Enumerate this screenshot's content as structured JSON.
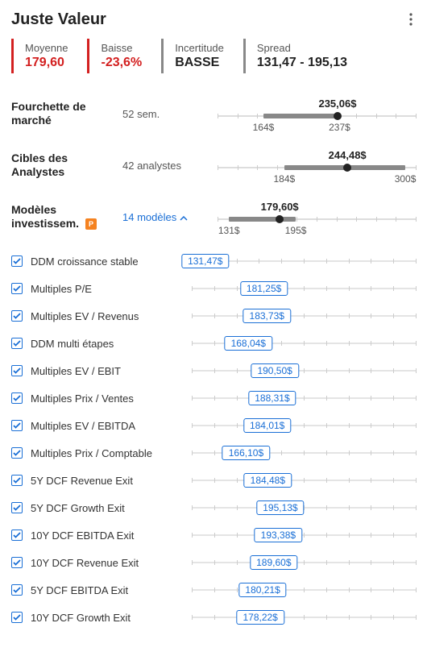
{
  "title": "Juste Valeur",
  "stats": {
    "avg": {
      "label": "Moyenne",
      "value": "179,60",
      "color": "red"
    },
    "drop": {
      "label": "Baisse",
      "value": "-23,6%",
      "color": "red"
    },
    "uncertainty": {
      "label": "Incertitude",
      "value": "BASSE",
      "color": "gray"
    },
    "spread": {
      "label": "Spread",
      "value": "131,47 - 195,13",
      "color": "gray"
    }
  },
  "axis": {
    "min": 120,
    "max": 310,
    "ticks": 10
  },
  "ranges": {
    "market": {
      "label": "Fourchette de marché",
      "sub": "52 sem.",
      "sub_link": false,
      "low": 164,
      "high": 237,
      "low_label": "164$",
      "high_label": "237$",
      "marker": 235.06,
      "marker_label": "235,06$"
    },
    "analysts": {
      "label": "Cibles des Analystes",
      "sub": "42 analystes",
      "sub_link": false,
      "low": 184,
      "high": 300,
      "low_label": "184$",
      "high_label": "300$",
      "marker": 244.48,
      "marker_label": "244,48$"
    },
    "models": {
      "label": "Modèles investissem.",
      "badge": "P",
      "sub": "14 modèles",
      "sub_link": true,
      "low": 131,
      "high": 195,
      "low_label": "131$",
      "high_label": "195$",
      "marker": 179.6,
      "marker_label": "179,60$"
    }
  },
  "model_axis_ticks": 10,
  "models": [
    {
      "name": "DDM croissance stable",
      "value": 131.47,
      "label": "131,47$"
    },
    {
      "name": "Multiples P/E",
      "value": 181.25,
      "label": "181,25$"
    },
    {
      "name": "Multiples EV / Revenus",
      "value": 183.73,
      "label": "183,73$"
    },
    {
      "name": "DDM multi étapes",
      "value": 168.04,
      "label": "168,04$"
    },
    {
      "name": "Multiples EV / EBIT",
      "value": 190.5,
      "label": "190,50$"
    },
    {
      "name": "Multiples Prix / Ventes",
      "value": 188.31,
      "label": "188,31$"
    },
    {
      "name": "Multiples EV / EBITDA",
      "value": 184.01,
      "label": "184,01$"
    },
    {
      "name": "Multiples Prix / Comptable",
      "value": 166.1,
      "label": "166,10$"
    },
    {
      "name": "5Y DCF Revenue Exit",
      "value": 184.48,
      "label": "184,48$"
    },
    {
      "name": "5Y DCF Growth Exit",
      "value": 195.13,
      "label": "195,13$"
    },
    {
      "name": "10Y DCF EBITDA Exit",
      "value": 193.38,
      "label": "193,38$"
    },
    {
      "name": "10Y DCF Revenue Exit",
      "value": 189.6,
      "label": "189,60$"
    },
    {
      "name": "5Y DCF EBITDA Exit",
      "value": 180.21,
      "label": "180,21$"
    },
    {
      "name": "10Y DCF Growth Exit",
      "value": 178.22,
      "label": "178,22$"
    }
  ]
}
